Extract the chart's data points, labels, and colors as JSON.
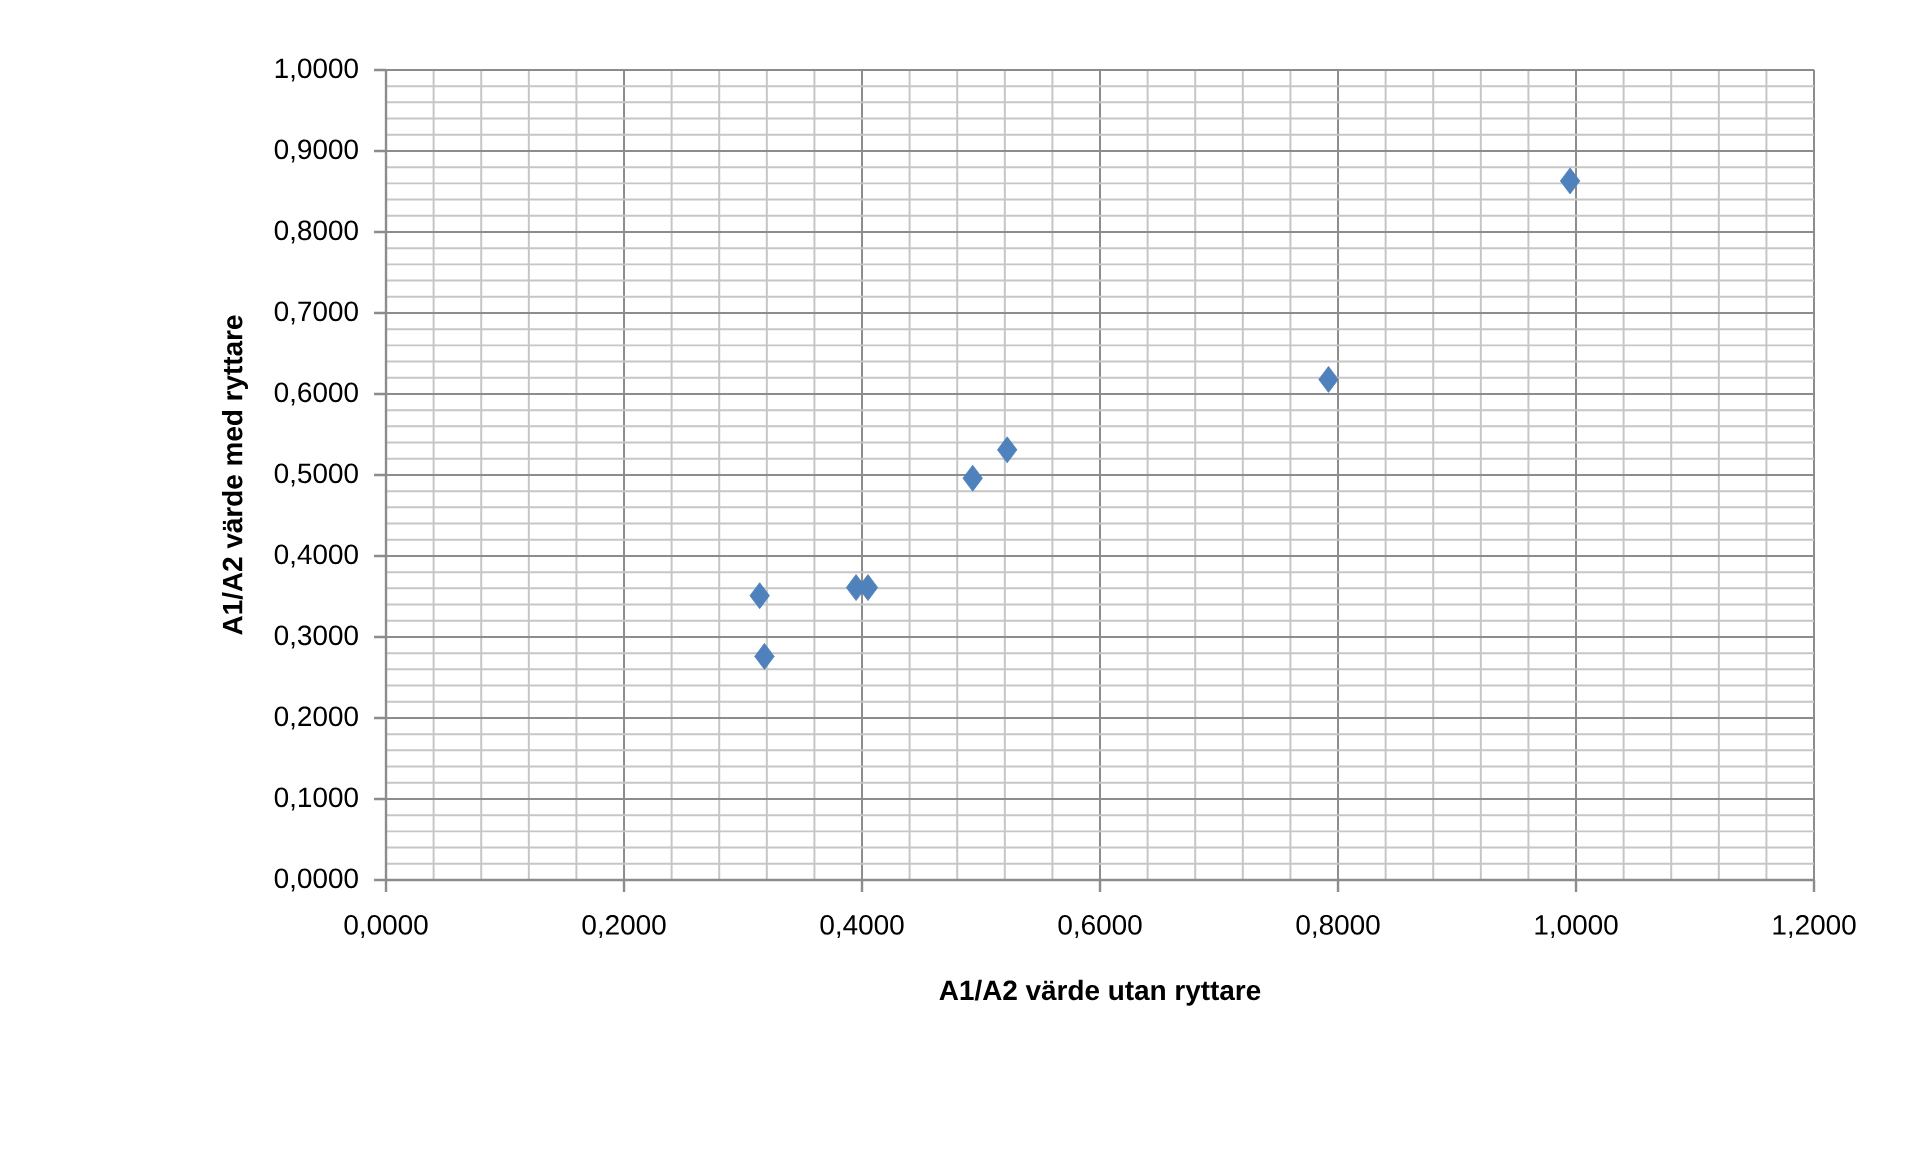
{
  "chart_data": {
    "type": "scatter",
    "xlabel": "A1/A2 värde utan ryttare",
    "ylabel": "A1/A2 värde med ryttare",
    "x": [
      0.314,
      0.318,
      0.395,
      0.405,
      0.493,
      0.522,
      0.792,
      0.995
    ],
    "values": [
      0.351,
      0.276,
      0.361,
      0.361,
      0.496,
      0.531,
      0.618,
      0.863
    ],
    "color": "#4f81bd",
    "marker": "diamond",
    "grid": true,
    "xlim": [
      0,
      1.2
    ],
    "ylim": [
      0,
      1.0
    ],
    "xticks": [
      {
        "value": 0,
        "label": "0,0000"
      },
      {
        "value": 0.2,
        "label": "0,2000"
      },
      {
        "value": 0.4,
        "label": "0,4000"
      },
      {
        "value": 0.6,
        "label": "0,6000"
      },
      {
        "value": 0.8,
        "label": "0,8000"
      },
      {
        "value": 1.0,
        "label": "1,0000"
      },
      {
        "value": 1.2,
        "label": "1,2000"
      }
    ],
    "yticks": [
      {
        "value": 0,
        "label": "0,0000"
      },
      {
        "value": 0.1,
        "label": "0,1000"
      },
      {
        "value": 0.2,
        "label": "0,2000"
      },
      {
        "value": 0.3,
        "label": "0,3000"
      },
      {
        "value": 0.4,
        "label": "0,4000"
      },
      {
        "value": 0.5,
        "label": "0,5000"
      },
      {
        "value": 0.6,
        "label": "0,6000"
      },
      {
        "value": 0.7,
        "label": "0,7000"
      },
      {
        "value": 0.8,
        "label": "0,8000"
      },
      {
        "value": 0.9,
        "label": "0,9000"
      },
      {
        "value": 1.0,
        "label": "1,0000"
      }
    ]
  }
}
